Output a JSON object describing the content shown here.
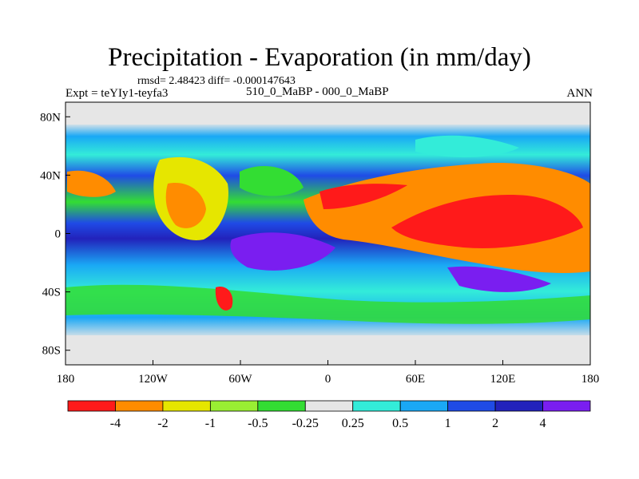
{
  "title": "Precipitation - Evaporation (in mm/day)",
  "stats": "rmsd= 2.48423 diff= -0.000147643",
  "experiment": "Expt = teYIy1-teyfa3",
  "comparison": "510_0_MaBP - 000_0_MaBP",
  "season": "ANN",
  "y_axis": {
    "ticks": [
      "80N",
      "40N",
      "0",
      "40S",
      "80S"
    ],
    "values": [
      80,
      40,
      0,
      -40,
      -80
    ]
  },
  "x_axis": {
    "ticks": [
      "180",
      "120W",
      "60W",
      "0",
      "60E",
      "120E",
      "180"
    ],
    "values": [
      -180,
      -120,
      -60,
      0,
      60,
      120,
      180
    ]
  },
  "colorbar": {
    "labels": [
      "-4",
      "-2",
      "-1",
      "-0.5",
      "-0.25",
      "0.25",
      "0.5",
      "1",
      "2",
      "4"
    ],
    "colors": [
      "#ff1a1a",
      "#ff8c00",
      "#e6e600",
      "#99ee33",
      "#33dd33",
      "#e6e6e6",
      "#33ecd9",
      "#1aa8f5",
      "#1f4be6",
      "#2222bb",
      "#7a1ef0"
    ]
  }
}
